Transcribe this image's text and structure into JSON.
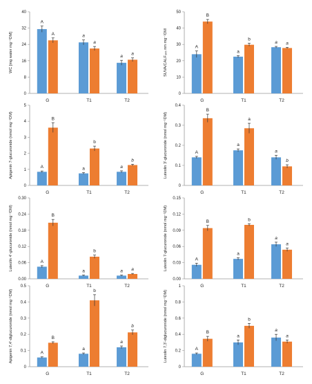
{
  "colors": {
    "G_series": "#5b9bd5",
    "T_series": "#ed7d31",
    "axis": "#999999",
    "error": "#333333"
  },
  "chart_data": [
    {
      "type": "bar",
      "categories": [
        "G",
        "T1",
        "T2"
      ],
      "ylabel": "WC [mg water mg⁻¹DM]",
      "ylim": [
        0,
        40
      ],
      "yticks": [
        "0",
        "8",
        "16",
        "24",
        "32",
        "40"
      ],
      "series": [
        {
          "values": [
            31.5,
            25.0,
            15.0
          ],
          "errors": [
            1.5,
            1.2,
            1.2
          ]
        },
        {
          "values": [
            26.0,
            22.0,
            16.5
          ],
          "errors": [
            1.2,
            1.0,
            0.9
          ]
        }
      ],
      "letters": [
        [
          "A",
          "A"
        ],
        [
          "a",
          "a"
        ],
        [
          "a",
          "a"
        ]
      ],
      "italic": [
        [
          false,
          false
        ],
        [
          true,
          true
        ],
        [
          true,
          true
        ]
      ]
    },
    {
      "type": "bar",
      "categories": [
        "G",
        "T1",
        "T2"
      ],
      "ylabel": "SUVA/CALF₃₆₅ nm mg⁻¹DM",
      "ylim": [
        0,
        50
      ],
      "yticks": [
        "0",
        "10",
        "20",
        "30",
        "40",
        "50"
      ],
      "series": [
        {
          "values": [
            24.0,
            22.5,
            28.3
          ],
          "errors": [
            2.0,
            0.6,
            0.5
          ]
        },
        {
          "values": [
            44.0,
            29.8,
            27.8
          ],
          "errors": [
            1.3,
            0.9,
            0.4
          ]
        }
      ],
      "letters": [
        [
          "A",
          "B"
        ],
        [
          "a",
          "b"
        ],
        [
          "a",
          "a"
        ]
      ],
      "italic": [
        [
          false,
          false
        ],
        [
          false,
          false
        ],
        [
          true,
          true
        ]
      ]
    },
    {
      "type": "bar",
      "categories": [
        "G",
        "T1",
        "T2"
      ],
      "ylabel": "Apigenin 7-glucuronide (nmol mg⁻¹DM)",
      "ylim": [
        0,
        5
      ],
      "yticks": [
        "0",
        "1",
        "2",
        "3",
        "4",
        "5"
      ],
      "series": [
        {
          "values": [
            0.85,
            0.75,
            0.85
          ],
          "errors": [
            0.05,
            0.05,
            0.06
          ]
        },
        {
          "values": [
            3.6,
            2.3,
            1.27
          ],
          "errors": [
            0.3,
            0.15,
            0.05
          ]
        }
      ],
      "letters": [
        [
          "A",
          "B"
        ],
        [
          "a",
          "b"
        ],
        [
          "a",
          "b"
        ]
      ],
      "italic": [
        [
          false,
          false
        ],
        [
          false,
          false
        ],
        [
          true,
          true
        ]
      ]
    },
    {
      "type": "bar",
      "categories": [
        "G",
        "T1",
        "T2"
      ],
      "ylabel": "Luteolin 3'-glucuronide (nmol mg⁻¹DM)",
      "ylim": [
        0,
        0.4
      ],
      "yticks": [
        "0",
        "0.1",
        "0.2",
        "0.3",
        "0.4"
      ],
      "series": [
        {
          "values": [
            0.14,
            0.175,
            0.14
          ],
          "errors": [
            0.005,
            0.007,
            0.01
          ]
        },
        {
          "values": [
            0.335,
            0.285,
            0.095
          ],
          "errors": [
            0.02,
            0.025,
            0.008
          ]
        }
      ],
      "letters": [
        [
          "A",
          "B"
        ],
        [
          "a",
          "a"
        ],
        [
          "a",
          "b"
        ]
      ],
      "italic": [
        [
          false,
          false
        ],
        [
          false,
          false
        ],
        [
          true,
          true
        ]
      ]
    },
    {
      "type": "bar",
      "categories": [
        "G",
        "T1",
        "T2"
      ],
      "ylabel": "Luteolin 4'-glucuronide (nmol mg⁻¹DM)",
      "ylim": [
        0,
        0.3
      ],
      "yticks": [
        "0.00",
        "0.06",
        "0.12",
        "0.18",
        "0.24",
        "0.30"
      ],
      "series": [
        {
          "values": [
            0.045,
            0.012,
            0.012
          ],
          "errors": [
            0.004,
            0.002,
            0.002
          ]
        },
        {
          "values": [
            0.208,
            0.082,
            0.018
          ],
          "errors": [
            0.012,
            0.006,
            0.002
          ]
        }
      ],
      "letters": [
        [
          "A",
          "B"
        ],
        [
          "a",
          "b"
        ],
        [
          "a",
          "a"
        ]
      ],
      "italic": [
        [
          false,
          false
        ],
        [
          false,
          false
        ],
        [
          true,
          true
        ]
      ]
    },
    {
      "type": "bar",
      "categories": [
        "G",
        "T1",
        "T2"
      ],
      "ylabel": "Luteolin 7-glucuronide (nmol mg⁻¹DM)",
      "ylim": [
        0,
        0.15
      ],
      "yticks": [
        "0.00",
        "0.03",
        "0.06",
        "0.09",
        "0.12",
        "0.15"
      ],
      "series": [
        {
          "values": [
            0.026,
            0.037,
            0.064
          ],
          "errors": [
            0.003,
            0.002,
            0.004
          ]
        },
        {
          "values": [
            0.094,
            0.1,
            0.054
          ],
          "errors": [
            0.005,
            0.002,
            0.003
          ]
        }
      ],
      "letters": [
        [
          "A",
          "B"
        ],
        [
          "a",
          "b"
        ],
        [
          "a",
          "a"
        ]
      ],
      "italic": [
        [
          false,
          false
        ],
        [
          false,
          false
        ],
        [
          true,
          true
        ]
      ]
    },
    {
      "type": "bar",
      "categories": [
        "G",
        "T1",
        "T2"
      ],
      "ylabel": "Apigenin 7,4'-diglucuronide (nmol mg⁻¹DM)",
      "ylim": [
        0,
        0.5
      ],
      "yticks": [
        "0",
        "0.1",
        "0.2",
        "0.3",
        "0.4",
        "0.5"
      ],
      "series": [
        {
          "values": [
            0.057,
            0.08,
            0.12
          ],
          "errors": [
            0.004,
            0.005,
            0.008
          ]
        },
        {
          "values": [
            0.148,
            0.41,
            0.212
          ],
          "errors": [
            0.006,
            0.035,
            0.015
          ]
        }
      ],
      "letters": [
        [
          "A",
          "B"
        ],
        [
          "a",
          "b"
        ],
        [
          "a",
          "b"
        ]
      ],
      "italic": [
        [
          false,
          false
        ],
        [
          false,
          false
        ],
        [
          true,
          true
        ]
      ]
    },
    {
      "type": "bar",
      "categories": [
        "G",
        "T1",
        "T2"
      ],
      "ylabel": "Luteolin 7,3'-diglucuronide (nmol mg⁻¹DM)",
      "ylim": [
        0,
        1
      ],
      "yticks": [
        "0",
        "0.2",
        "0.4",
        "0.6",
        "0.8",
        "1"
      ],
      "series": [
        {
          "values": [
            0.16,
            0.3,
            0.36
          ],
          "errors": [
            0.01,
            0.03,
            0.04
          ]
        },
        {
          "values": [
            0.345,
            0.505,
            0.31
          ],
          "errors": [
            0.03,
            0.03,
            0.02
          ]
        }
      ],
      "letters": [
        [
          "A",
          "B"
        ],
        [
          "a",
          "b"
        ],
        [
          "a",
          "a"
        ]
      ],
      "italic": [
        [
          false,
          false
        ],
        [
          false,
          false
        ],
        [
          true,
          true
        ]
      ]
    }
  ]
}
